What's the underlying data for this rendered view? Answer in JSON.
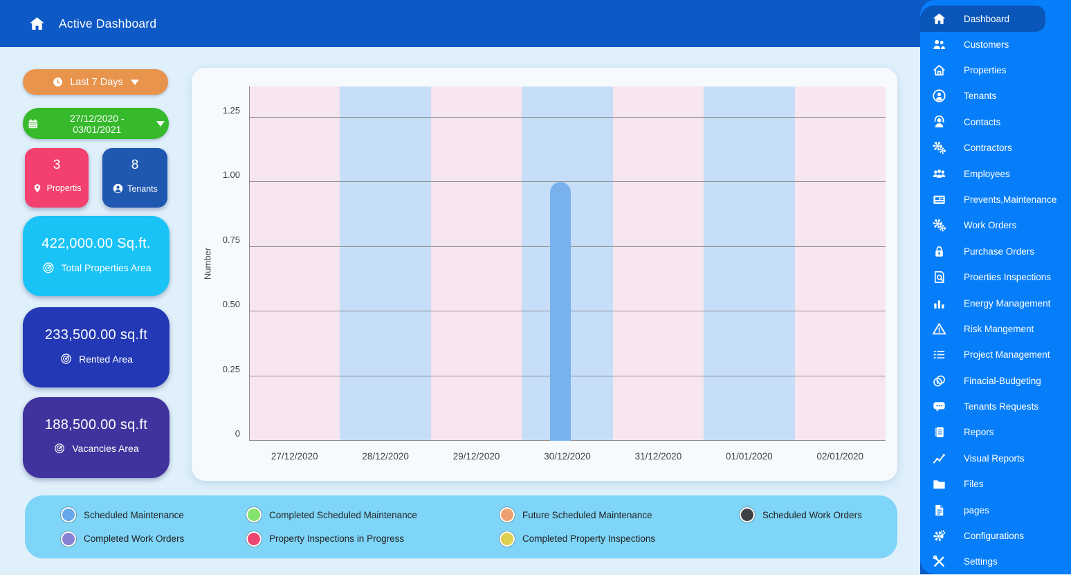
{
  "header": {
    "title": "Active Dashboard"
  },
  "sidebar": {
    "items": [
      {
        "label": "Dashboard",
        "icon": "home",
        "active": true
      },
      {
        "label": "Customers",
        "icon": "users",
        "active": false
      },
      {
        "label": "Properties",
        "icon": "home-outline",
        "active": false
      },
      {
        "label": "Tenants",
        "icon": "user-circle",
        "active": false
      },
      {
        "label": "Contacts",
        "icon": "headset",
        "active": false
      },
      {
        "label": "Contractors",
        "icon": "gears",
        "active": false
      },
      {
        "label": "Employees",
        "icon": "people-group",
        "active": false
      },
      {
        "label": "Prevents,Maintenance",
        "icon": "news",
        "active": false
      },
      {
        "label": "Work Orders",
        "icon": "gears",
        "active": false
      },
      {
        "label": "Purchase Orders",
        "icon": "lock",
        "active": false
      },
      {
        "label": "Proerties Inspections",
        "icon": "doc-search",
        "active": false
      },
      {
        "label": "Energy Management",
        "icon": "bar-chart",
        "active": false
      },
      {
        "label": "Risk Mangement",
        "icon": "warning",
        "active": false
      },
      {
        "label": "Project Management",
        "icon": "list",
        "active": false
      },
      {
        "label": "Finacial-Budgeting",
        "icon": "coins",
        "active": false
      },
      {
        "label": "Tenants Requests",
        "icon": "chat",
        "active": false
      },
      {
        "label": "Repors",
        "icon": "notebook",
        "active": false
      },
      {
        "label": "Visual Reports",
        "icon": "line-chart",
        "active": false
      },
      {
        "label": "Files",
        "icon": "folder",
        "active": false
      },
      {
        "label": "pages",
        "icon": "page",
        "active": false
      },
      {
        "label": "Configurations",
        "icon": "gear",
        "active": false
      },
      {
        "label": "Settings",
        "icon": "tools",
        "active": false
      }
    ]
  },
  "filters": {
    "period": "Last 7 Days",
    "date_range": "27/12/2020 - 03/01/2021"
  },
  "stats": {
    "properties": {
      "value": "3",
      "label": "Propertis"
    },
    "tenants": {
      "value": "8",
      "label": "Tenants"
    },
    "total_area": {
      "value": "422,000.00 Sq.ft.",
      "label": "Total Properties Area"
    },
    "rented_area": {
      "value": "233,500.00 sq.ft",
      "label": "Rented Area"
    },
    "vacancies_area": {
      "value": "188,500.00 sq.ft",
      "label": "Vacancies Area"
    }
  },
  "chart_data": {
    "type": "bar",
    "categories": [
      "27/12/2020",
      "28/12/2020",
      "29/12/2020",
      "30/12/2020",
      "31/12/2020",
      "01/01/2020",
      "02/01/2020"
    ],
    "series": [
      {
        "name": "Scheduled Maintenance",
        "color": "#79b1ee",
        "values": [
          0,
          0,
          0,
          1,
          0,
          0,
          0
        ]
      },
      {
        "name": "Completed Scheduled Maintenance",
        "color": "#84e26d",
        "values": [
          0,
          0,
          0,
          0,
          0,
          0,
          0
        ]
      },
      {
        "name": "Future Scheduled Maintenance",
        "color": "#efa070",
        "values": [
          0,
          0,
          0,
          0,
          0,
          0,
          0
        ]
      },
      {
        "name": "Scheduled Work Orders",
        "color": "#3e4247",
        "values": [
          0,
          0,
          0,
          0,
          0,
          0,
          0
        ]
      },
      {
        "name": "Completed Work Orders",
        "color": "#8781d6",
        "values": [
          0,
          0,
          0,
          0,
          0,
          0,
          0
        ]
      },
      {
        "name": "Property Inspections in Progress",
        "color": "#ee4570",
        "values": [
          0,
          0,
          0,
          0,
          0,
          0,
          0
        ]
      },
      {
        "name": "Completed Property Inspections",
        "color": "#ddd04e",
        "values": [
          0,
          0,
          0,
          0,
          0,
          0,
          0
        ]
      }
    ],
    "title": "",
    "xlabel": "",
    "ylabel": "Number",
    "yticks": [
      "0",
      "0.25",
      "0.50",
      "0.75",
      "1.00",
      "1.25"
    ],
    "ylim": [
      0,
      1.37
    ],
    "grid": true,
    "band_colors": [
      "#f7e6ef",
      "#c6def8"
    ],
    "legend_position": "bottom"
  },
  "legend": {
    "items": [
      {
        "label": "Scheduled Maintenance",
        "color": "#64a7ea",
        "row": 1,
        "col": 1
      },
      {
        "label": "Completed Scheduled Maintenance",
        "color": "#84e26d",
        "row": 1,
        "col": 2
      },
      {
        "label": "Future Scheduled Maintenance",
        "color": "#efa070",
        "row": 1,
        "col": 3
      },
      {
        "label": "Scheduled Work Orders",
        "color": "#3e4247",
        "row": 1,
        "col": 4
      },
      {
        "label": "Completed Work Orders",
        "color": "#8781d6",
        "row": 2,
        "col": 1
      },
      {
        "label": "Property Inspections in Progress",
        "color": "#ee4570",
        "row": 2,
        "col": 2
      },
      {
        "label": "Completed Property Inspections",
        "color": "#ddd04e",
        "row": 2,
        "col": 3
      }
    ]
  },
  "colors": {
    "header_blue": "#0d59c6",
    "sidebar_blue": "#077ef9",
    "sidebar_active_blue": "#0a55b8",
    "page_bg": "#dff0fb",
    "chart_card_bg": "#f7fafd",
    "legend_bg": "#7ed5f8",
    "period_orange": "#e8944d",
    "daterange_green": "#36b92b",
    "properties_pink": "#f4406e",
    "tenants_blue": "#1e58b0",
    "total_area_cyan": "#19c3f6",
    "rented_blue": "#2338b4",
    "vacancies_purple": "#41339d",
    "bar_blue": "#79b1ee",
    "grid_gray": "#8c8c8c"
  }
}
